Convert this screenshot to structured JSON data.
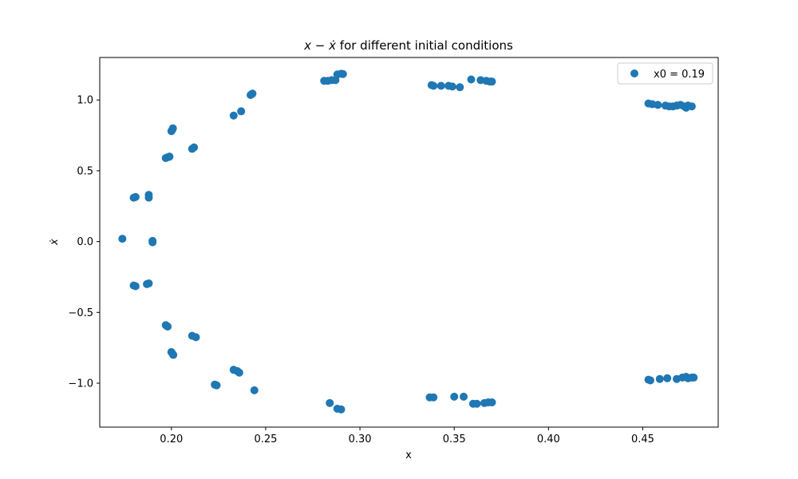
{
  "chart_data": {
    "type": "scatter",
    "title_math": "x − ẋ",
    "title_suffix": " for different initial conditions",
    "xlabel": "x",
    "ylabel": "ẋ",
    "xlim": [
      0.162,
      0.49
    ],
    "ylim": [
      -1.31,
      1.3
    ],
    "xticks": [
      0.2,
      0.25,
      0.3,
      0.35,
      0.4,
      0.45
    ],
    "xtick_labels": [
      "0.20",
      "0.25",
      "0.30",
      "0.35",
      "0.40",
      "0.45"
    ],
    "yticks": [
      -1.0,
      -0.5,
      0.0,
      0.5,
      1.0
    ],
    "ytick_labels": [
      "−1.0",
      "−0.5",
      "0.0",
      "0.5",
      "1.0"
    ],
    "grid": false,
    "legend_position": "top-right",
    "series": [
      {
        "name": "x0 = 0.19",
        "color": "#1f77b4",
        "points": [
          [
            0.174,
            0.02
          ],
          [
            0.18,
            0.31
          ],
          [
            0.181,
            0.315
          ],
          [
            0.18,
            -0.31
          ],
          [
            0.181,
            -0.315
          ],
          [
            0.188,
            0.31
          ],
          [
            0.188,
            0.33
          ],
          [
            0.188,
            -0.295
          ],
          [
            0.187,
            -0.3
          ],
          [
            0.19,
            0.005
          ],
          [
            0.19,
            -0.005
          ],
          [
            0.197,
            0.59
          ],
          [
            0.198,
            0.595
          ],
          [
            0.199,
            0.6
          ],
          [
            0.2,
            0.78
          ],
          [
            0.2005,
            0.79
          ],
          [
            0.2008,
            0.8
          ],
          [
            0.197,
            -0.59
          ],
          [
            0.198,
            -0.6
          ],
          [
            0.2,
            -0.78
          ],
          [
            0.2005,
            -0.79
          ],
          [
            0.201,
            -0.8
          ],
          [
            0.211,
            0.655
          ],
          [
            0.212,
            0.665
          ],
          [
            0.211,
            -0.665
          ],
          [
            0.213,
            -0.675
          ],
          [
            0.223,
            -1.01
          ],
          [
            0.224,
            -1.015
          ],
          [
            0.233,
            0.89
          ],
          [
            0.237,
            0.92
          ],
          [
            0.233,
            -0.905
          ],
          [
            0.235,
            -0.915
          ],
          [
            0.236,
            -0.925
          ],
          [
            0.242,
            1.035
          ],
          [
            0.2425,
            1.04
          ],
          [
            0.243,
            1.045
          ],
          [
            0.244,
            -1.05
          ],
          [
            0.281,
            1.135
          ],
          [
            0.283,
            1.135
          ],
          [
            0.285,
            1.14
          ],
          [
            0.287,
            1.14
          ],
          [
            0.288,
            1.18
          ],
          [
            0.29,
            1.185
          ],
          [
            0.291,
            1.183
          ],
          [
            0.284,
            -1.14
          ],
          [
            0.288,
            -1.18
          ],
          [
            0.29,
            -1.185
          ],
          [
            0.338,
            1.105
          ],
          [
            0.339,
            1.1
          ],
          [
            0.343,
            1.1
          ],
          [
            0.347,
            1.1
          ],
          [
            0.349,
            1.095
          ],
          [
            0.353,
            1.09
          ],
          [
            0.359,
            1.145
          ],
          [
            0.364,
            1.14
          ],
          [
            0.367,
            1.135
          ],
          [
            0.369,
            1.13
          ],
          [
            0.37,
            1.13
          ],
          [
            0.337,
            -1.1
          ],
          [
            0.339,
            -1.1
          ],
          [
            0.35,
            -1.095
          ],
          [
            0.355,
            -1.095
          ],
          [
            0.36,
            -1.145
          ],
          [
            0.362,
            -1.145
          ],
          [
            0.366,
            -1.14
          ],
          [
            0.368,
            -1.135
          ],
          [
            0.37,
            -1.135
          ],
          [
            0.453,
            0.975
          ],
          [
            0.455,
            0.97
          ],
          [
            0.458,
            0.965
          ],
          [
            0.462,
            0.96
          ],
          [
            0.464,
            0.955
          ],
          [
            0.466,
            0.955
          ],
          [
            0.468,
            0.96
          ],
          [
            0.47,
            0.965
          ],
          [
            0.472,
            0.955
          ],
          [
            0.473,
            0.945
          ],
          [
            0.474,
            0.96
          ],
          [
            0.476,
            0.955
          ],
          [
            0.453,
            -0.975
          ],
          [
            0.454,
            -0.98
          ],
          [
            0.459,
            -0.97
          ],
          [
            0.463,
            -0.965
          ],
          [
            0.468,
            -0.97
          ],
          [
            0.471,
            -0.96
          ],
          [
            0.473,
            -0.955
          ],
          [
            0.474,
            -0.965
          ],
          [
            0.476,
            -0.96
          ],
          [
            0.477,
            -0.96
          ]
        ]
      }
    ]
  }
}
